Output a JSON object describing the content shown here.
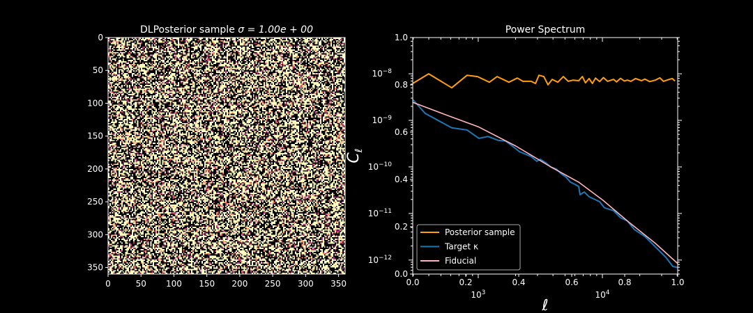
{
  "chart_data": [
    {
      "type": "heatmap",
      "title_prefix": "DLPosterior sample ",
      "title_math": "σ = 1.00e + 00",
      "xlim": [
        0,
        360
      ],
      "ylim": [
        360,
        0
      ],
      "xticks": [
        "0",
        "50",
        "100",
        "150",
        "200",
        "250",
        "300",
        "350"
      ],
      "yticks": [
        "0",
        "50",
        "100",
        "150",
        "200",
        "250",
        "300",
        "350"
      ],
      "colormap": "magma",
      "colors": [
        "#000004",
        "#b73779",
        "#fc8961",
        "#fcfdbf"
      ]
    },
    {
      "type": "line",
      "title": "Power Spectrum",
      "xlabel": "ℓ",
      "ylabel": "C",
      "ylabel_sub": "ℓ",
      "xscale": "log",
      "yscale": "log",
      "xlim": [
        297,
        40400
      ],
      "ylim": [
        6e-08,
        5e-13
      ],
      "log_xticks": [
        {
          "base": "10",
          "exp": "3",
          "value": 1000
        },
        {
          "base": "10",
          "exp": "4",
          "value": 10000
        }
      ],
      "log_yticks": [
        {
          "base": "10",
          "exp": "−8",
          "value": 1e-08
        },
        {
          "base": "10",
          "exp": "−9",
          "value": 1e-09
        },
        {
          "base": "10",
          "exp": "−10",
          "value": 1e-10
        },
        {
          "base": "10",
          "exp": "−11",
          "value": 1e-11
        },
        {
          "base": "10",
          "exp": "−12",
          "value": 1e-12
        }
      ],
      "linear_ticks": [
        "0.0",
        "0.2",
        "0.4",
        "0.6",
        "0.8",
        "1.0"
      ],
      "legend": "lower-left",
      "series": [
        {
          "name": "Posterior sample",
          "color": "#ff9f0e",
          "x": [
            297,
            399,
            612,
            813,
            987,
            1230,
            1419,
            1766,
            2064,
            2290,
            2671,
            2890,
            3083,
            3375,
            3648,
            3943,
            4370,
            4845,
            5305,
            5800,
            6442,
            6900,
            7300,
            7820,
            8300,
            8800,
            9500,
            10200,
            11000,
            12300,
            13000,
            14000,
            15000,
            15900,
            17000,
            18500,
            20650,
            22000,
            24000,
            26700,
            29000,
            31000,
            34600,
            36500,
            38400
          ],
          "y": [
            6.2e-09,
            1e-08,
            5e-09,
            9.3e-09,
            8.7e-09,
            6.6e-09,
            8.7e-09,
            6.6e-09,
            8.1e-09,
            6.9e-09,
            6.9e-09,
            6.2e-09,
            9.3e-09,
            8.7e-09,
            5.8e-09,
            7.6e-09,
            6.6e-09,
            8.7e-09,
            6.9e-09,
            7.3e-09,
            7.1e-09,
            8.7e-09,
            6.4e-09,
            7.9e-09,
            6.2e-09,
            8.1e-09,
            6.8e-09,
            8.3e-09,
            6.9e-09,
            7.6e-09,
            6.7e-09,
            8e-09,
            7e-09,
            7.3e-09,
            6.9e-09,
            7.9e-09,
            7.1e-09,
            7.7e-09,
            6.8e-09,
            7.3e-09,
            8.2e-09,
            6.9e-09,
            7.6e-09,
            7.9e-09,
            7e-09
          ]
        },
        {
          "name": "Target κ",
          "color": "#1f77b4",
          "x": [
            297,
            374,
            612,
            813,
            1013,
            1200,
            1456,
            1656,
            1884,
            2143,
            2671,
            2963,
            3162,
            3553,
            3840,
            4257,
            4664,
            5105,
            5521,
            6040,
            6442,
            6610,
            7145,
            7820,
            9500,
            10400,
            12300,
            14000,
            15900,
            18100,
            22000,
            26700,
            32400,
            36900,
            40400
          ],
          "y": [
            2.8e-09,
            1.41e-09,
            6.9e-10,
            6.2e-10,
            4.1e-10,
            4.5e-10,
            3.7e-10,
            3.6e-10,
            2.8e-10,
            2.13e-10,
            1.67e-10,
            1.32e-10,
            1.46e-10,
            1.19e-10,
            1e-10,
            9e-11,
            7.1e-11,
            6e-11,
            4.7e-11,
            4.2e-11,
            3.8e-11,
            2.53e-11,
            2.9e-11,
            2.28e-11,
            1.79e-11,
            1.32e-11,
            1.15e-11,
            8.1e-12,
            6.9e-12,
            4.5e-12,
            3.2e-12,
            1.92e-12,
            1.15e-12,
            7.3e-13,
            6.9e-13
          ]
        },
        {
          "name": "Fiducial",
          "color": "#ffb6c1",
          "x": [
            297,
            552,
            1000,
            2010,
            3840,
            6440,
            10100,
            15900,
            26700,
            40400
          ],
          "y": [
            2.44e-09,
            1.31e-09,
            7.3e-10,
            2.8e-10,
            1e-10,
            4.7e-11,
            1.92e-11,
            6.9e-12,
            2.28e-12,
            8.4e-13
          ]
        }
      ]
    }
  ]
}
